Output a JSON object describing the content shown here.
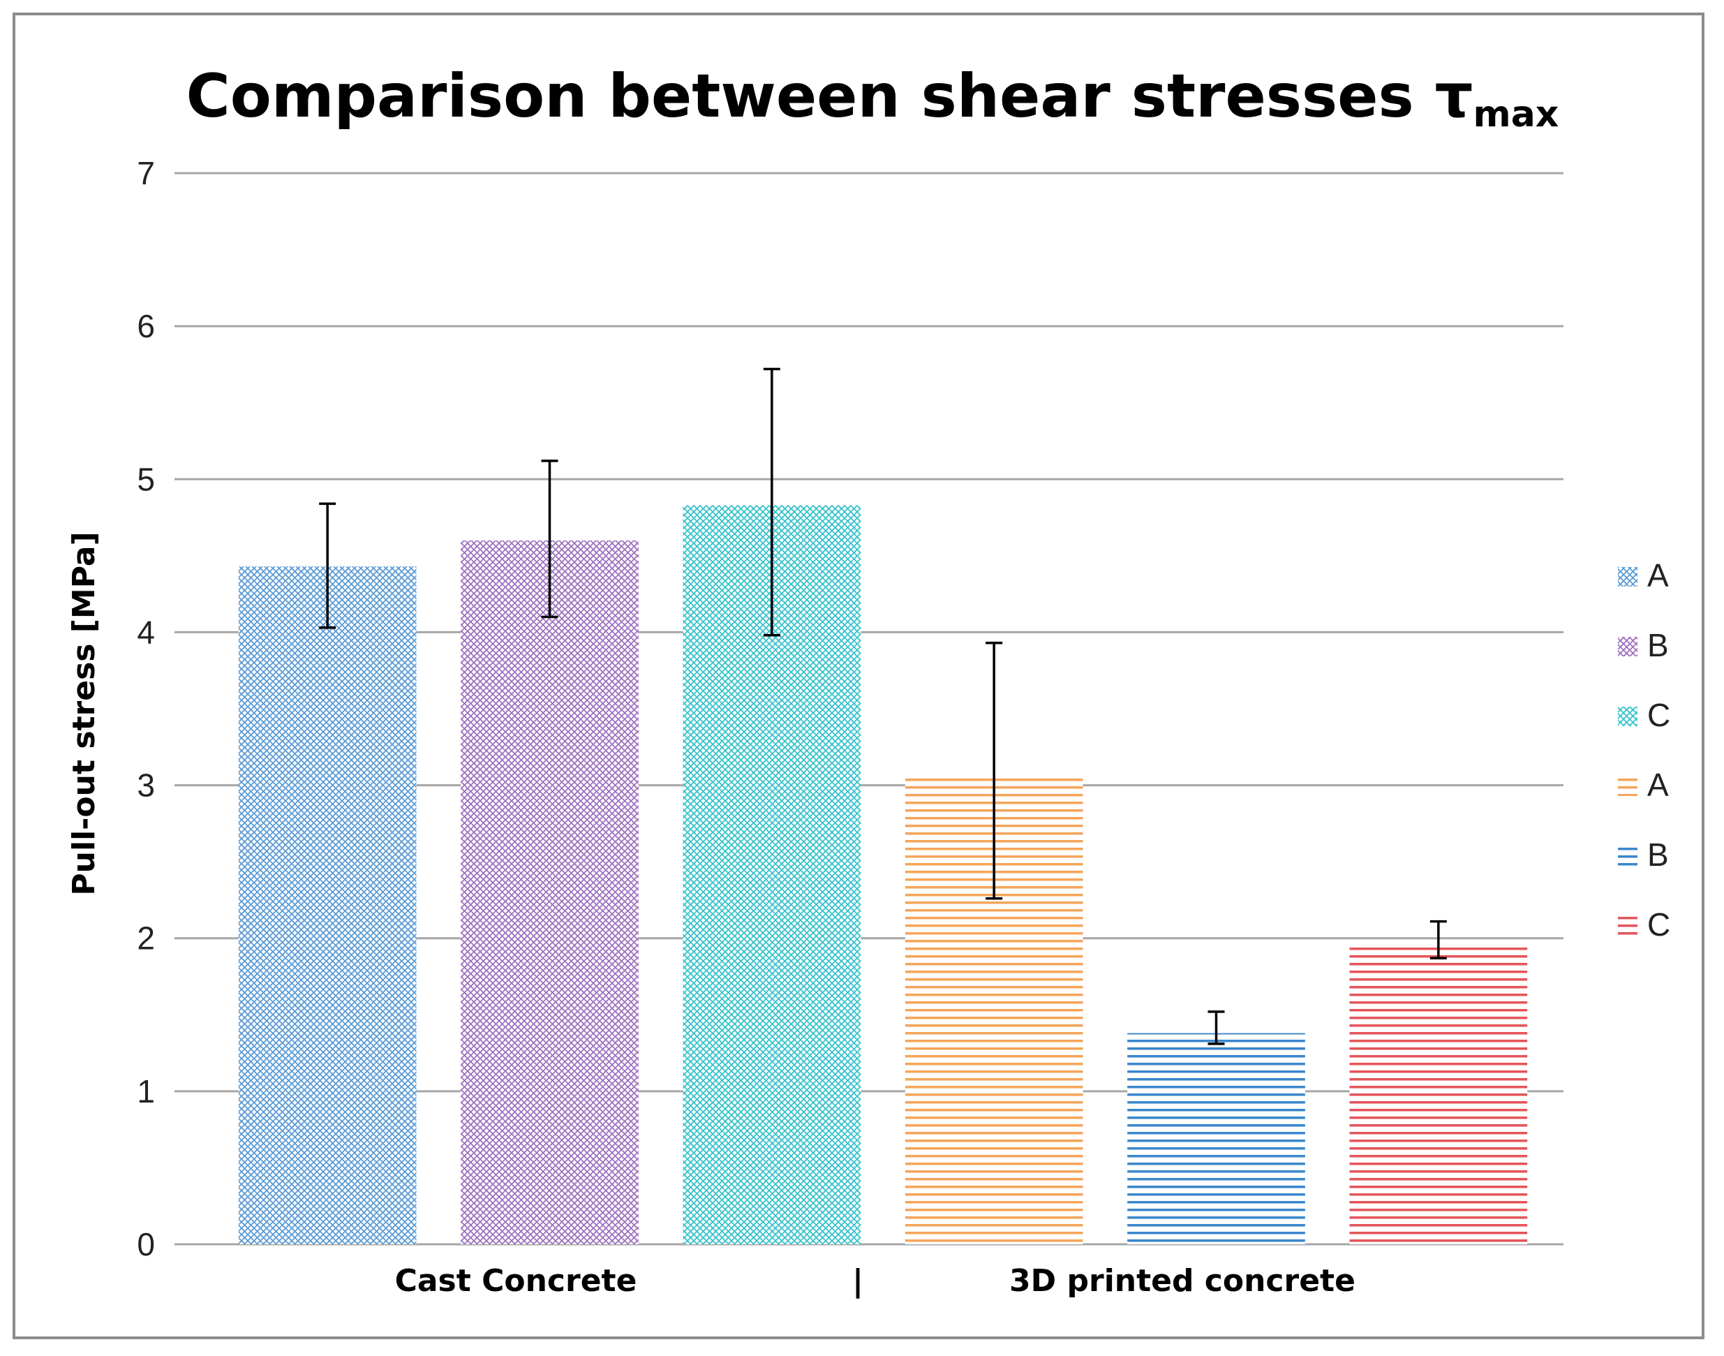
{
  "chart_data": {
    "type": "bar",
    "title": "Comparison between shear stresses τ",
    "title_subscript": "max",
    "ylabel": "Pull-out stress [MPa]",
    "xlabel": "",
    "ylim": [
      0,
      7
    ],
    "yticks": [
      "0",
      "1",
      "2",
      "3",
      "4",
      "5",
      "6",
      "7"
    ],
    "grid": true,
    "legend_position": "right",
    "groups": [
      {
        "label": "Cast Concrete",
        "pattern": "crosshatch"
      },
      {
        "label": "3D printed concrete",
        "pattern": "horizontal"
      }
    ],
    "group_separator": "|",
    "bars": [
      {
        "group": "Cast Concrete",
        "name": "A",
        "value": 4.43,
        "err_low": 4.03,
        "err_high": 4.84,
        "color": "#5b9bd5",
        "pattern": "crosshatch"
      },
      {
        "group": "Cast Concrete",
        "name": "B",
        "value": 4.6,
        "err_low": 4.1,
        "err_high": 5.12,
        "color": "#9e72bf",
        "pattern": "crosshatch"
      },
      {
        "group": "Cast Concrete",
        "name": "C",
        "value": 4.83,
        "err_low": 3.98,
        "err_high": 5.72,
        "color": "#36c2cb",
        "pattern": "crosshatch"
      },
      {
        "group": "3D printed concrete",
        "name": "A",
        "value": 3.06,
        "err_low": 2.26,
        "err_high": 3.93,
        "color": "#f5a55a",
        "pattern": "horizontal"
      },
      {
        "group": "3D printed concrete",
        "name": "B",
        "value": 1.38,
        "err_low": 1.31,
        "err_high": 1.52,
        "color": "#3a87cc",
        "pattern": "horizontal"
      },
      {
        "group": "3D printed concrete",
        "name": "C",
        "value": 1.96,
        "err_low": 1.87,
        "err_high": 2.11,
        "color": "#e4545a",
        "pattern": "horizontal"
      }
    ],
    "legend": [
      {
        "label": "A",
        "color": "#5b9bd5",
        "pattern": "crosshatch"
      },
      {
        "label": "B",
        "color": "#9e72bf",
        "pattern": "crosshatch"
      },
      {
        "label": "C",
        "color": "#36c2cb",
        "pattern": "crosshatch"
      },
      {
        "label": "A",
        "color": "#f5a55a",
        "pattern": "horizontal"
      },
      {
        "label": "B",
        "color": "#3a87cc",
        "pattern": "horizontal"
      },
      {
        "label": "C",
        "color": "#e4545a",
        "pattern": "horizontal"
      }
    ]
  }
}
